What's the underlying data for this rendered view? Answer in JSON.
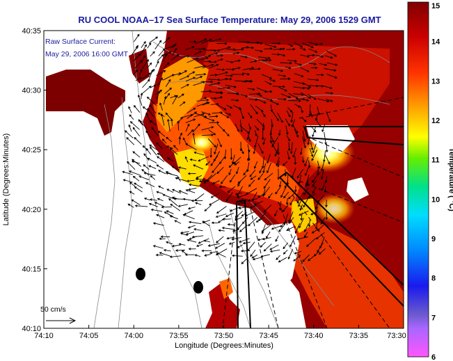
{
  "chart_data": {
    "type": "heatmap",
    "title": "RU COOL  NOAA–17  Sea Surface Temperature:  May 29, 2006 1529 GMT",
    "overlay": {
      "name": "Raw Surface Current:",
      "timestamp": "May 29, 2006 16:00 GMT",
      "vector_scale_label": "50 cm/s"
    },
    "xlabel": "Longitude (Degrees:Minutes)",
    "ylabel": "Latitude (Degrees:Minutes)",
    "x_ticks": [
      "74:10",
      "74:05",
      "74:00",
      "73:55",
      "73:50",
      "73:45",
      "73:40",
      "73:35",
      "73:30"
    ],
    "y_ticks": [
      "40:35",
      "40:30",
      "40:25",
      "40:20",
      "40:15",
      "40:10"
    ],
    "xlim_minutes_west": [
      70,
      30
    ],
    "ylim_minutes_north": [
      10,
      35
    ],
    "colorbar": {
      "label": "Temperature ( °C)",
      "min": 6,
      "max": 15,
      "ticks": [
        "15",
        "14",
        "13",
        "12",
        "11",
        "10",
        "9",
        "8",
        "7",
        "6"
      ]
    },
    "colors": {
      "title": "#1a1aa0",
      "warm": "#8b0000",
      "mid": "#ff6600",
      "cool": "#ffff33",
      "land": "#ffffff"
    }
  }
}
